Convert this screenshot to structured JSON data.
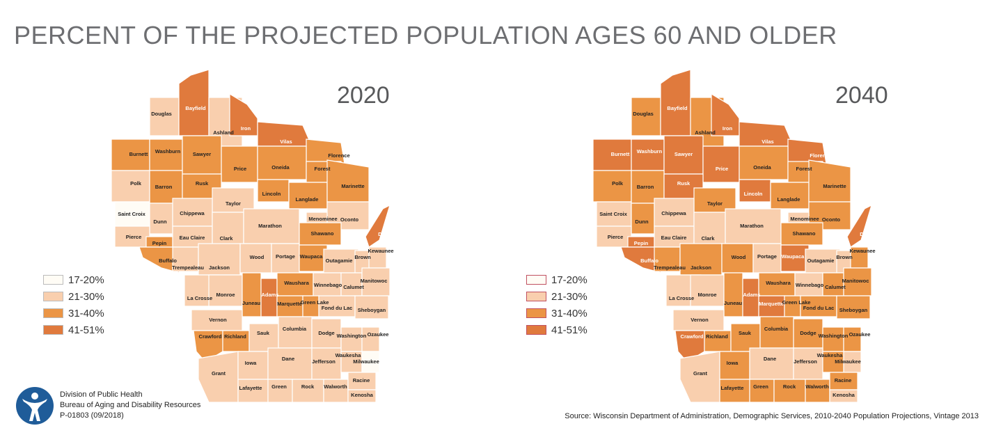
{
  "title": "PERCENT OF THE PROJECTED POPULATION AGES 60 AND OLDER",
  "colors": {
    "c1": "#fffcf5",
    "c2": "#f9cfae",
    "c3": "#eb9545",
    "c4": "#e07a3d",
    "border": "#ffffff",
    "legend_border_2040": "#c05060"
  },
  "legend": {
    "items": [
      {
        "label": "17-20%",
        "class": 1
      },
      {
        "label": "21-30%",
        "class": 2
      },
      {
        "label": "31-40%",
        "class": 3
      },
      {
        "label": "41-51%",
        "class": 4
      }
    ]
  },
  "maps": [
    {
      "year": "2020",
      "counties": {
        "Douglas": 2,
        "Bayfield": 4,
        "Ashland": 2,
        "Iron": 4,
        "Vilas": 4,
        "Florence": 3,
        "Burnett": 3,
        "Washburn": 3,
        "Sawyer": 3,
        "Price": 3,
        "Oneida": 3,
        "Forest": 3,
        "Polk": 2,
        "Barron": 3,
        "Rusk": 3,
        "Lincoln": 3,
        "Langlade": 3,
        "Marinette": 3,
        "Saint Croix": 1,
        "Dunn": 2,
        "Chippewa": 2,
        "Taylor": 2,
        "Menominee": 2,
        "Oconto": 2,
        "Pierce": 2,
        "Pepin": 3,
        "Eau Claire": 2,
        "Clark": 2,
        "Marathon": 2,
        "Shawano": 3,
        "Door": 4,
        "Buffalo": 3,
        "Trempealeau": 2,
        "Jackson": 2,
        "Wood": 2,
        "Portage": 2,
        "Waupaca": 3,
        "Outagamie": 2,
        "Brown": 2,
        "Kewaunee": 2,
        "La Crosse": 2,
        "Monroe": 2,
        "Juneau": 3,
        "Adams": 4,
        "Waushara": 3,
        "Winnebago": 2,
        "Calumet": 2,
        "Manitowoc": 2,
        "Marquette": 3,
        "Green Lake": 3,
        "Fond du Lac": 2,
        "Sheboygan": 2,
        "Vernon": 2,
        "Crawford": 3,
        "Richland": 3,
        "Sauk": 2,
        "Columbia": 2,
        "Dodge": 2,
        "Washington": 2,
        "Ozaukee": 2,
        "Grant": 2,
        "Iowa": 2,
        "Dane": 2,
        "Jefferson": 2,
        "Waukesha": 2,
        "Milwaukee": 1,
        "Lafayette": 2,
        "Green": 2,
        "Rock": 2,
        "Walworth": 2,
        "Racine": 2,
        "Kenosha": 2
      }
    },
    {
      "year": "2040",
      "counties": {
        "Douglas": 3,
        "Bayfield": 4,
        "Ashland": 3,
        "Iron": 4,
        "Vilas": 4,
        "Florence": 4,
        "Burnett": 4,
        "Washburn": 4,
        "Sawyer": 4,
        "Price": 4,
        "Oneida": 3,
        "Forest": 3,
        "Polk": 3,
        "Barron": 3,
        "Rusk": 4,
        "Lincoln": 4,
        "Langlade": 3,
        "Marinette": 3,
        "Saint Croix": 2,
        "Dunn": 3,
        "Chippewa": 2,
        "Taylor": 3,
        "Menominee": 2,
        "Oconto": 3,
        "Pierce": 2,
        "Pepin": 4,
        "Eau Claire": 2,
        "Clark": 2,
        "Marathon": 2,
        "Shawano": 3,
        "Door": 4,
        "Buffalo": 4,
        "Trempealeau": 3,
        "Jackson": 3,
        "Wood": 3,
        "Portage": 2,
        "Waupaca": 4,
        "Outagamie": 2,
        "Brown": 2,
        "Kewaunee": 3,
        "La Crosse": 2,
        "Monroe": 2,
        "Juneau": 3,
        "Adams": 4,
        "Waushara": 3,
        "Winnebago": 2,
        "Calumet": 3,
        "Manitowoc": 3,
        "Marquette": 4,
        "Green Lake": 3,
        "Fond du Lac": 3,
        "Sheboygan": 3,
        "Vernon": 2,
        "Crawford": 4,
        "Richland": 3,
        "Sauk": 3,
        "Columbia": 3,
        "Dodge": 3,
        "Washington": 3,
        "Ozaukee": 3,
        "Grant": 2,
        "Iowa": 3,
        "Dane": 2,
        "Jefferson": 2,
        "Waukesha": 3,
        "Milwaukee": 2,
        "Lafayette": 3,
        "Green": 3,
        "Rock": 3,
        "Walworth": 3,
        "Racine": 3,
        "Kenosha": 2
      }
    }
  ],
  "footer": {
    "org_line1": "Division of Public Health",
    "org_line2": "Bureau of Aging and Disability Resources",
    "org_line3": "P-01803 (09/2018)",
    "source": "Source:  Wisconsin Department of Administration, Demographic Services, 2010-2040 Population Projections, Vintage 2013"
  },
  "logo_icon": "person-figure-icon"
}
